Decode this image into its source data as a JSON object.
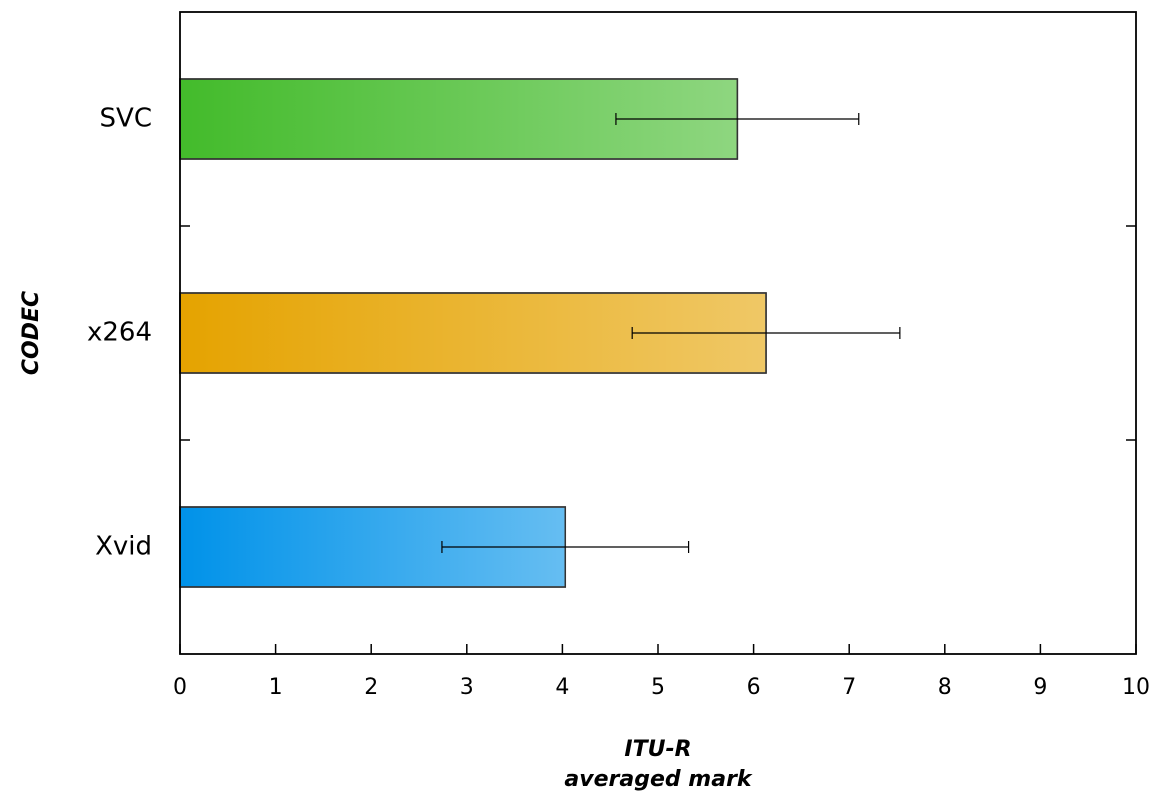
{
  "chart_data": {
    "type": "barh",
    "categories": [
      "SVC",
      "x264",
      "Xvid"
    ],
    "values": [
      5.83,
      6.13,
      4.03
    ],
    "errors": [
      1.27,
      1.4,
      1.29
    ],
    "colors": [
      "#43bb2b",
      "#e5a300",
      "#0092e9"
    ],
    "xlim": [
      0,
      10
    ],
    "xticks": [
      0,
      1,
      2,
      3,
      4,
      5,
      6,
      7,
      8,
      9,
      10
    ],
    "xlabel": [
      "ITU-R",
      "averaged mark"
    ],
    "ylabel": "CODEC"
  }
}
